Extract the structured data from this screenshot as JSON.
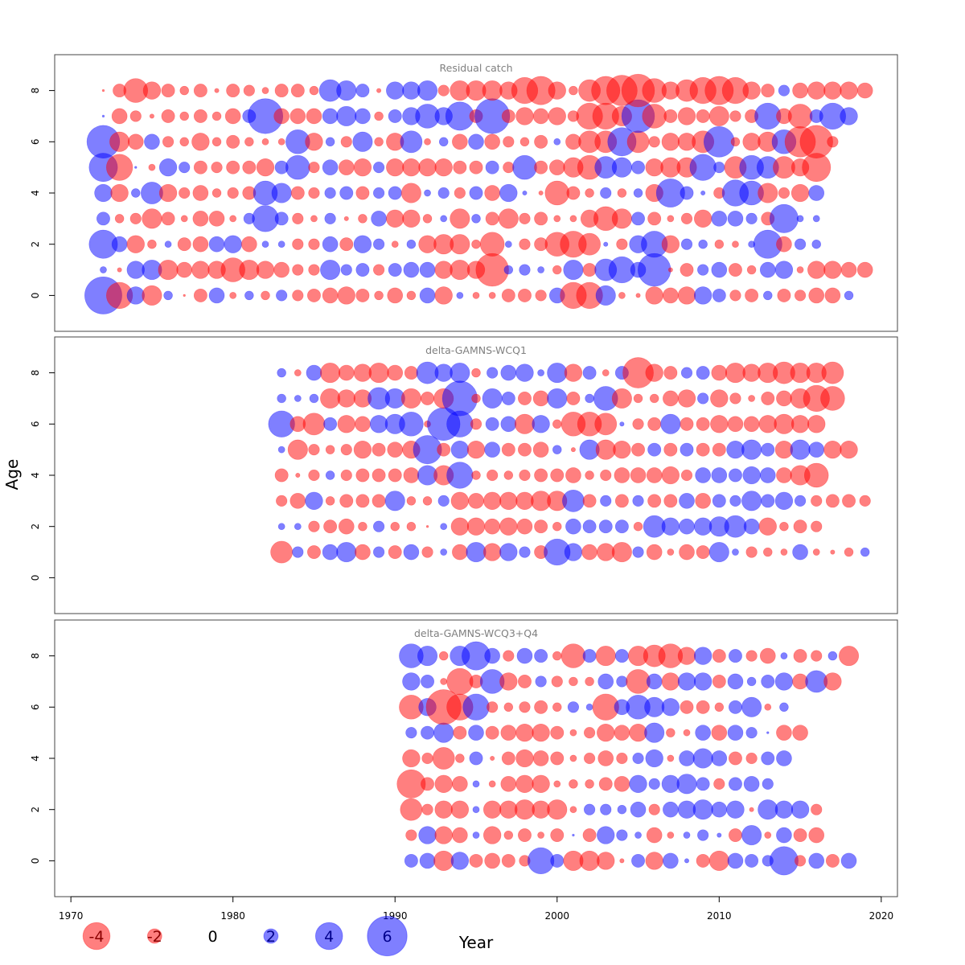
{
  "colors": {
    "positive": "#0000FF",
    "negative": "#FF0000",
    "frame": "#444444",
    "title": "#808080"
  },
  "axis_labels": {
    "x": "Year",
    "y": "Age"
  },
  "legend": {
    "items": [
      {
        "value": -4,
        "label": "-4"
      },
      {
        "value": -2,
        "label": "-2"
      },
      {
        "value": 0,
        "label": "0"
      },
      {
        "value": 2,
        "label": "2"
      },
      {
        "value": 4,
        "label": "4"
      },
      {
        "value": 6,
        "label": "6"
      }
    ]
  },
  "chart_data": [
    {
      "type": "bubble",
      "title": "Residual catch",
      "xlim": [
        1969,
        2021
      ],
      "ylim": [
        -1.4,
        9.4
      ],
      "xticks": [
        1970,
        1980,
        1990,
        2000,
        2010,
        2020
      ],
      "yticks": [
        0,
        2,
        4,
        6,
        8
      ],
      "years": [
        1972,
        2018
      ],
      "ages": [
        0,
        8
      ],
      "rows": {
        "8": [
          -0.2,
          -1.2,
          -2.2,
          -1.6,
          -1.2,
          -0.8,
          -1.2,
          -0.4,
          -1.2,
          -1.0,
          -0.6,
          -1.2,
          -1.2,
          -0.8,
          2.0,
          1.8,
          1.2,
          -0.4,
          1.6,
          1.6,
          1.8,
          -1.0,
          -1.8,
          -1.8,
          -1.8,
          -1.6,
          -2.4,
          -2.6,
          -1.6,
          -0.8,
          -2.0,
          -2.6,
          -2.8,
          -3.0,
          -2.2,
          -1.6,
          -2.0,
          -2.4,
          -2.6,
          -2.4,
          -1.6,
          -1.2,
          1.0,
          -1.4,
          -1.6,
          -1.6,
          -1.6,
          -1.4
        ],
        "7": [
          0.2,
          -1.4,
          -1.0,
          -0.4,
          -1.2,
          -0.8,
          -1.2,
          -0.8,
          -1.4,
          1.2,
          3.2,
          -1.4,
          -1.4,
          -1.4,
          1.4,
          1.8,
          1.4,
          -0.8,
          1.2,
          1.6,
          2.2,
          1.6,
          2.6,
          -1.2,
          3.2,
          -1.2,
          -1.6,
          -1.4,
          -1.6,
          -1.0,
          -2.4,
          -2.4,
          -1.8,
          3.0,
          -2.2,
          -1.2,
          -1.6,
          -1.2,
          -1.8,
          -1.0,
          -1.2,
          2.4,
          -1.4,
          -2.2,
          1.2,
          2.4,
          1.6
        ],
        "6": [
          3.0,
          -1.8,
          -1.4,
          1.4,
          -1.0,
          -0.8,
          -1.6,
          -0.8,
          -1.2,
          -0.8,
          -0.6,
          -0.6,
          2.2,
          -1.6,
          0.8,
          -1.0,
          1.8,
          -0.8,
          -1.6,
          2.0,
          -0.6,
          0.8,
          -1.4,
          1.4,
          -1.4,
          -1.0,
          -0.8,
          -1.2,
          0.6,
          -1.4,
          -2.0,
          -2.0,
          2.6,
          -2.0,
          -1.0,
          -1.6,
          -1.6,
          -2.0,
          2.8,
          -0.8,
          -1.6,
          -1.8,
          2.2,
          -2.8,
          -3.0,
          -1.0
        ],
        "5": [
          2.6,
          -2.4,
          0.2,
          -0.6,
          1.6,
          1.0,
          -1.2,
          -1.0,
          -1.2,
          -1.2,
          -1.6,
          1.2,
          2.2,
          -1.0,
          1.4,
          -1.4,
          -1.6,
          1.0,
          -1.6,
          -1.6,
          -1.6,
          -1.6,
          -1.2,
          -1.2,
          1.2,
          -1.0,
          2.2,
          -1.2,
          -1.4,
          -1.8,
          -2.2,
          2.0,
          1.8,
          1.2,
          -1.6,
          -1.8,
          -1.8,
          2.4,
          1.0,
          -2.0,
          2.2,
          2.0,
          -2.0,
          -1.6,
          -2.6
        ],
        "4": [
          1.6,
          -1.6,
          0.8,
          2.0,
          -1.6,
          -1.0,
          -1.4,
          -0.8,
          -1.0,
          -1.2,
          2.2,
          1.8,
          -1.2,
          -1.0,
          1.0,
          1.2,
          -1.2,
          1.0,
          1.2,
          -1.8,
          0.6,
          1.0,
          -1.0,
          1.2,
          -1.4,
          1.6,
          0.4,
          -0.4,
          -2.2,
          -1.2,
          -0.8,
          1.0,
          -0.8,
          0.8,
          -1.6,
          2.6,
          1.2,
          0.4,
          -1.0,
          2.4,
          2.2,
          -1.8,
          -1.0,
          -1.6,
          1.4
        ],
        "3": [
          1.2,
          -0.8,
          -1.0,
          -1.8,
          -1.2,
          -0.6,
          -1.4,
          -1.4,
          -0.6,
          1.0,
          2.4,
          1.2,
          -1.0,
          -0.6,
          1.0,
          -0.4,
          -0.8,
          1.4,
          -1.6,
          -1.6,
          -0.8,
          0.6,
          -1.8,
          0.8,
          -1.2,
          -1.8,
          -1.0,
          -1.2,
          -0.6,
          -0.6,
          -1.6,
          -2.2,
          -1.8,
          1.2,
          -1.2,
          -0.6,
          -1.0,
          -1.6,
          1.4,
          1.4,
          1.0,
          -1.2,
          2.6,
          0.6,
          0.6
        ],
        "2": [
          2.6,
          1.4,
          -1.6,
          -0.8,
          0.6,
          -1.2,
          -1.4,
          1.4,
          1.6,
          -1.4,
          0.6,
          0.6,
          -1.0,
          -1.0,
          1.4,
          -1.2,
          1.6,
          1.0,
          -0.6,
          0.8,
          -1.6,
          -1.8,
          -1.8,
          -0.8,
          -2.2,
          0.6,
          -1.0,
          -1.2,
          -2.2,
          -2.4,
          -2.0,
          0.4,
          -1.0,
          1.6,
          2.4,
          -1.6,
          1.0,
          0.8,
          -0.8,
          -0.6,
          0.6,
          2.6,
          -1.4,
          1.0,
          0.8
        ],
        "1": [
          0.6,
          -0.4,
          1.6,
          1.8,
          -1.8,
          -1.4,
          -1.6,
          -1.6,
          -2.2,
          -1.8,
          -1.6,
          -1.4,
          -1.0,
          -1.0,
          1.8,
          1.0,
          1.2,
          -1.0,
          1.2,
          1.4,
          1.4,
          -1.6,
          -1.8,
          -1.6,
          -3.0,
          0.8,
          1.0,
          0.6,
          -0.8,
          1.8,
          -1.2,
          2.0,
          2.4,
          1.4,
          3.0,
          -0.4,
          -1.2,
          1.0,
          1.4,
          -1.2,
          -0.8,
          1.4,
          1.6,
          -0.6,
          -1.6,
          -1.6,
          -1.4,
          -1.4
        ],
        "0": [
          3.4,
          -2.4,
          1.6,
          -1.8,
          0.8,
          -0.2,
          -1.2,
          1.4,
          -0.6,
          0.8,
          -0.8,
          1.0,
          -1.0,
          -1.2,
          -1.4,
          -1.6,
          -1.2,
          -0.8,
          -1.4,
          -0.8,
          1.4,
          -1.6,
          0.6,
          -0.6,
          -0.6,
          -1.2,
          -1.2,
          -1.0,
          1.4,
          -2.4,
          -2.4,
          1.8,
          -0.6,
          -0.4,
          -1.6,
          -1.4,
          -1.6,
          1.6,
          1.2,
          -1.0,
          -1.2,
          0.8,
          -1.2,
          -1.0,
          -1.4,
          -1.4,
          0.8
        ]
      }
    },
    {
      "type": "bubble",
      "title": "delta-GAMNS-WCQ1",
      "xlim": [
        1969,
        2021
      ],
      "ylim": [
        -1.4,
        9.4
      ],
      "xticks": [
        1970,
        1980,
        1990,
        2000,
        2010,
        2020
      ],
      "yticks": [
        0,
        2,
        4,
        6,
        8
      ],
      "years": [
        1983,
        2019
      ],
      "ages": [
        1,
        8
      ],
      "rows": {
        "8": [
          0.8,
          -0.6,
          1.4,
          -1.8,
          -1.4,
          -1.6,
          -1.8,
          -1.4,
          -1.2,
          2.0,
          1.6,
          1.8,
          -0.8,
          1.0,
          1.4,
          1.6,
          0.6,
          1.8,
          -1.6,
          1.2,
          -0.6,
          1.2,
          -2.8,
          -1.6,
          -1.2,
          1.0,
          1.2,
          -1.4,
          -1.8,
          -1.6,
          -1.8,
          -2.0,
          -1.8,
          -1.8,
          -2.0
        ],
        "7": [
          0.8,
          0.6,
          0.8,
          -1.8,
          -1.6,
          -1.6,
          2.0,
          1.8,
          -1.8,
          -1.2,
          -1.8,
          3.2,
          -0.8,
          1.8,
          1.2,
          -1.2,
          -1.4,
          1.8,
          -1.2,
          0.8,
          2.2,
          -1.8,
          -0.8,
          -0.8,
          -1.4,
          -1.6,
          1.0,
          -1.6,
          -1.0,
          -0.6,
          -1.2,
          -1.4,
          -1.8,
          -2.4,
          -2.2
        ],
        "6": [
          2.4,
          -1.4,
          -2.0,
          1.2,
          -1.6,
          -1.4,
          1.6,
          1.8,
          2.2,
          -0.6,
          3.0,
          2.4,
          -1.0,
          1.2,
          1.4,
          -1.8,
          1.6,
          -0.8,
          -2.2,
          -2.2,
          -2.0,
          0.4,
          -1.0,
          -1.2,
          1.8,
          -1.2,
          -1.2,
          -1.6,
          -1.4,
          -1.4,
          -1.6,
          -1.8,
          -1.6,
          -1.6
        ],
        "5": [
          0.6,
          -1.8,
          -1.0,
          -0.8,
          -1.0,
          -1.6,
          -1.2,
          -1.4,
          -1.6,
          2.6,
          -1.2,
          1.6,
          -1.6,
          1.4,
          -1.2,
          -1.2,
          -1.4,
          0.8,
          -0.4,
          1.8,
          -1.8,
          -1.6,
          -1.2,
          1.2,
          -1.2,
          1.2,
          -1.2,
          -1.2,
          1.6,
          1.8,
          1.2,
          -1.6,
          1.8,
          1.4,
          -1.6,
          -1.6
        ],
        "4": [
          -1.2,
          -0.4,
          -1.0,
          0.8,
          -1.0,
          -1.2,
          -1.2,
          -1.2,
          -1.4,
          1.8,
          -1.8,
          2.4,
          -0.8,
          -1.0,
          -0.8,
          -1.0,
          -1.2,
          -1.2,
          -1.4,
          -0.8,
          -1.0,
          -1.4,
          -1.4,
          -1.4,
          -1.6,
          -1.0,
          1.4,
          1.4,
          1.2,
          1.6,
          1.4,
          -1.4,
          -1.8,
          -2.2
        ],
        "3": [
          -1.0,
          -1.4,
          1.6,
          -0.8,
          -1.2,
          -1.2,
          -1.2,
          1.8,
          -0.8,
          -0.8,
          1.0,
          -1.6,
          -1.4,
          -1.6,
          -1.6,
          -1.6,
          -1.8,
          -1.8,
          2.0,
          -1.2,
          1.0,
          -1.2,
          1.0,
          -1.2,
          -1.2,
          1.4,
          -1.4,
          1.2,
          1.0,
          1.8,
          1.2,
          1.6,
          1.0,
          -1.0,
          -1.2,
          -1.2,
          -1.0
        ],
        "2": [
          0.6,
          0.6,
          -1.0,
          -1.2,
          -1.4,
          -0.8,
          1.0,
          -0.8,
          -0.8,
          -0.2,
          0.6,
          -1.6,
          -1.6,
          -1.4,
          -1.6,
          -1.4,
          -1.2,
          -0.8,
          1.4,
          1.2,
          1.2,
          1.2,
          -0.8,
          2.0,
          1.6,
          1.4,
          1.6,
          1.8,
          2.0,
          1.4,
          -1.6,
          -0.8,
          -1.2,
          -1.0
        ],
        "1": [
          -2.0,
          1.0,
          -1.2,
          1.4,
          1.8,
          -1.4,
          1.0,
          -1.2,
          1.4,
          -1.0,
          0.6,
          -1.4,
          1.8,
          -1.6,
          1.6,
          1.0,
          -1.2,
          2.4,
          1.6,
          -1.4,
          -1.6,
          -1.8,
          1.0,
          -1.4,
          -0.6,
          -1.4,
          -1.2,
          1.8,
          0.6,
          -1.0,
          -0.8,
          -0.6,
          1.4,
          -0.6,
          -0.4,
          -0.8,
          0.8
        ]
      }
    },
    {
      "type": "bubble",
      "title": "delta-GAMNS-WCQ3+Q4",
      "xlim": [
        1969,
        2021
      ],
      "ylim": [
        -1.4,
        9.4
      ],
      "xticks": [
        1970,
        1980,
        1990,
        2000,
        2010,
        2020
      ],
      "yticks": [
        0,
        2,
        4,
        6,
        8
      ],
      "years": [
        1991,
        2018
      ],
      "ages": [
        0,
        8
      ],
      "rows": {
        "8": [
          2.2,
          1.8,
          -0.8,
          1.8,
          2.6,
          1.4,
          -1.0,
          1.4,
          1.2,
          -0.8,
          -2.2,
          1.2,
          -1.8,
          1.2,
          -1.8,
          -2.0,
          -2.2,
          -1.6,
          1.6,
          -1.2,
          1.2,
          -1.0,
          -1.4,
          0.6,
          -1.2,
          -1.0,
          0.8,
          -1.8
        ],
        "7": [
          1.6,
          1.2,
          -0.6,
          -2.4,
          -1.2,
          2.2,
          -1.6,
          -1.2,
          1.0,
          -1.0,
          -0.8,
          -0.8,
          1.4,
          1.0,
          -2.2,
          1.4,
          -1.6,
          1.6,
          1.6,
          -1.2,
          1.4,
          0.8,
          1.2,
          1.6,
          -1.4,
          2.0,
          -1.6
        ],
        "6": [
          -2.2,
          1.6,
          -3.2,
          -2.4,
          2.4,
          -1.0,
          -0.8,
          -1.0,
          -1.2,
          -0.8,
          1.0,
          0.6,
          -2.4,
          1.4,
          2.2,
          1.8,
          1.6,
          -1.2,
          -1.2,
          -0.8,
          1.2,
          1.8,
          -0.6,
          0.8
        ],
        "5": [
          1.0,
          1.2,
          1.8,
          -1.2,
          1.4,
          -1.2,
          -1.4,
          -1.6,
          -1.6,
          -1.2,
          -0.6,
          -1.0,
          -1.6,
          -1.4,
          -1.6,
          1.8,
          -0.8,
          -0.6,
          1.4,
          -1.4,
          1.4,
          1.0,
          0.2,
          -1.4,
          -1.4
        ],
        "4": [
          -1.6,
          -1.0,
          -2.0,
          -0.8,
          1.2,
          -0.4,
          -1.2,
          -1.6,
          -1.4,
          -1.2,
          -0.6,
          -1.0,
          -1.4,
          -1.0,
          1.0,
          1.6,
          -0.6,
          1.4,
          1.8,
          1.4,
          -1.2,
          -1.0,
          1.2,
          1.4
        ],
        "3": [
          -2.6,
          -1.2,
          -1.6,
          -1.4,
          0.6,
          -0.6,
          -1.4,
          -1.6,
          -1.6,
          -0.6,
          -0.8,
          -0.8,
          -1.2,
          -1.4,
          1.6,
          1.0,
          1.6,
          1.8,
          1.2,
          -1.0,
          1.2,
          1.4,
          1.0
        ],
        "2": [
          -2.0,
          -1.0,
          -1.6,
          -1.6,
          0.6,
          -1.6,
          -1.6,
          -1.8,
          -1.6,
          -1.8,
          -0.6,
          1.0,
          1.0,
          0.8,
          1.4,
          -1.0,
          1.4,
          1.6,
          1.8,
          1.4,
          1.6,
          -0.4,
          1.8,
          1.6,
          1.6,
          -1.0
        ],
        "1": [
          -1.0,
          1.6,
          -1.6,
          -1.4,
          0.6,
          -1.6,
          -0.8,
          -1.2,
          -0.6,
          -1.2,
          0.2,
          -1.2,
          1.6,
          1.0,
          0.6,
          -1.4,
          -0.6,
          0.6,
          1.0,
          0.4,
          -1.2,
          1.8,
          -0.6,
          1.4,
          -1.2,
          -1.4
        ],
        "0": [
          1.2,
          1.4,
          -1.8,
          1.6,
          -1.2,
          -1.4,
          -1.2,
          -1.0,
          2.4,
          1.2,
          -1.8,
          -1.8,
          -1.6,
          -0.4,
          1.2,
          -1.6,
          1.4,
          0.4,
          -1.2,
          -1.8,
          1.4,
          1.2,
          1.0,
          2.6,
          -1.0,
          1.4,
          -1.2,
          1.4
        ]
      }
    }
  ]
}
